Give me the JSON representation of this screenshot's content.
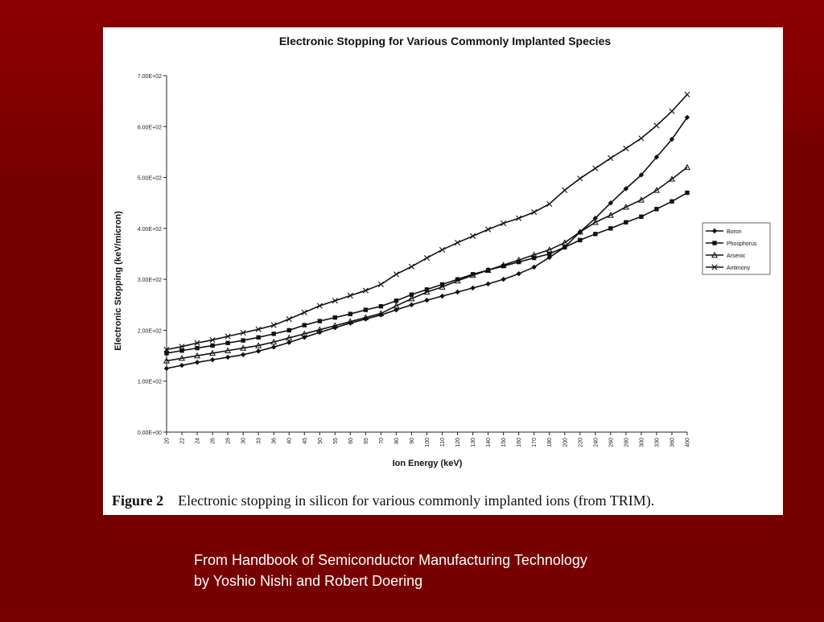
{
  "slide": {
    "background_color": "#7a0000",
    "credit_line1": "From Handbook of Semiconductor Manufacturing Technology",
    "credit_line2": "by Yoshio Nishi and Robert Doering"
  },
  "figure": {
    "caption_number": "Figure 2",
    "caption_text": "Electronic stopping in silicon for various commonly implanted ions (from TRIM)."
  },
  "chart_data": {
    "type": "line",
    "title": "Electronic Stopping for Various Commonly Implanted Species",
    "xlabel": "Ion Energy (keV)",
    "ylabel": "Electronic Stopping (keV/micron)",
    "ylim": [
      0,
      700
    ],
    "yticks": [
      0,
      100,
      200,
      300,
      400,
      500,
      600,
      700
    ],
    "ytick_labels": [
      "0.00E+00",
      "1.00E+02",
      "2.00E+02",
      "3.00E+02",
      "4.00E+02",
      "5.00E+02",
      "6.00E+02",
      "7.00E+02"
    ],
    "categories": [
      "20",
      "22",
      "24",
      "26",
      "28",
      "30",
      "33",
      "36",
      "40",
      "45",
      "50",
      "55",
      "60",
      "65",
      "70",
      "80",
      "90",
      "100",
      "110",
      "120",
      "130",
      "140",
      "150",
      "160",
      "170",
      "180",
      "200",
      "220",
      "240",
      "260",
      "280",
      "300",
      "330",
      "360",
      "400"
    ],
    "grid": false,
    "legend_position": "right",
    "series": [
      {
        "name": "Boron",
        "marker": "diamond",
        "values": [
          125,
          131,
          137,
          142,
          147,
          152,
          159,
          167,
          176,
          186,
          196,
          205,
          214,
          222,
          230,
          240,
          250,
          259,
          267,
          275,
          283,
          291,
          300,
          311,
          324,
          343,
          363,
          393,
          420,
          450,
          478,
          505,
          540,
          575,
          618
        ]
      },
      {
        "name": "Phosphorus",
        "marker": "square",
        "values": [
          155,
          160,
          165,
          170,
          175,
          180,
          186,
          193,
          200,
          210,
          218,
          225,
          232,
          240,
          247,
          258,
          270,
          280,
          290,
          300,
          310,
          318,
          326,
          334,
          342,
          350,
          363,
          377,
          389,
          400,
          412,
          423,
          438,
          453,
          470
        ]
      },
      {
        "name": "Arsenic",
        "marker": "triangle",
        "values": [
          140,
          145,
          150,
          155,
          160,
          165,
          170,
          177,
          185,
          193,
          201,
          209,
          217,
          225,
          233,
          248,
          262,
          275,
          285,
          297,
          308,
          318,
          328,
          338,
          348,
          358,
          372,
          393,
          412,
          426,
          442,
          456,
          475,
          497,
          520
        ]
      },
      {
        "name": "Antimony",
        "marker": "x",
        "values": [
          162,
          168,
          175,
          181,
          188,
          195,
          202,
          210,
          222,
          235,
          248,
          258,
          268,
          278,
          290,
          310,
          325,
          342,
          358,
          372,
          385,
          398,
          410,
          420,
          432,
          448,
          475,
          498,
          518,
          538,
          557,
          577,
          602,
          630,
          663
        ]
      }
    ]
  }
}
